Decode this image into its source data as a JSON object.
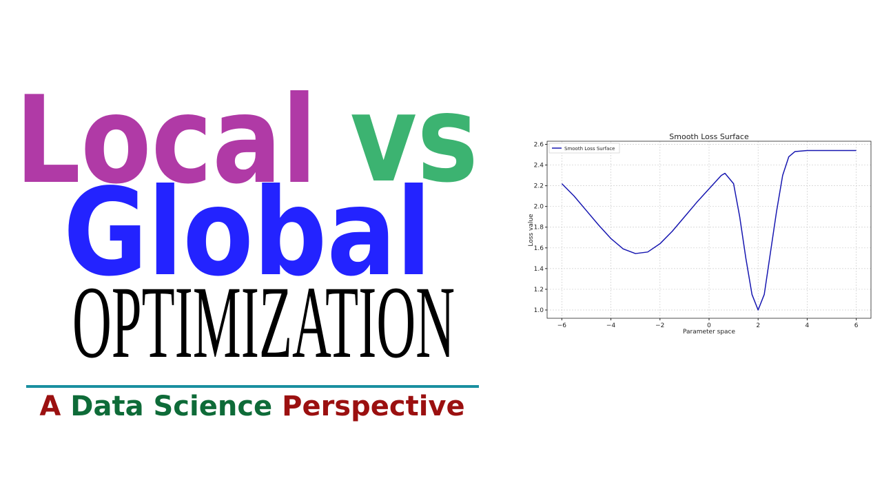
{
  "header": {
    "line1": {
      "word1": "Local",
      "word2": "vs"
    },
    "line2": "Global",
    "line3": "OPTIMIZATION",
    "subtitle": [
      "A",
      "Data Science",
      "Perspective"
    ]
  },
  "chart_data": {
    "type": "line",
    "title": "Smooth Loss Surface",
    "x_label": "Parameter space",
    "y_label": "Loss value",
    "x": [
      -6,
      -5.5,
      -5,
      -4.5,
      -4,
      -3.5,
      -3,
      -2.5,
      -2,
      -1.5,
      -1,
      -0.5,
      0,
      0.5,
      0.65,
      1.0,
      1.25,
      1.5,
      1.75,
      2.0,
      2.25,
      2.5,
      2.75,
      3.0,
      3.25,
      3.5,
      4,
      5,
      6
    ],
    "series": [
      {
        "name": "Smooth Loss Surface",
        "color": "#1515b0",
        "values": [
          2.22,
          2.1,
          1.96,
          1.82,
          1.69,
          1.59,
          1.545,
          1.56,
          1.64,
          1.76,
          1.9,
          2.04,
          2.17,
          2.3,
          2.32,
          2.22,
          1.9,
          1.5,
          1.15,
          1.0,
          1.15,
          1.55,
          1.95,
          2.3,
          2.48,
          2.53,
          2.54,
          2.54,
          2.54
        ]
      }
    ],
    "xlim": [
      -6.6,
      6.6
    ],
    "ylim": [
      0.92,
      2.63
    ],
    "xticks": [
      {
        "value": -6,
        "label": "−6"
      },
      {
        "value": -4,
        "label": "−4"
      },
      {
        "value": -2,
        "label": "−2"
      },
      0,
      2,
      4,
      6
    ],
    "yticks": [
      {
        "value": 1.0,
        "label": "1.0"
      },
      1.2,
      1.4,
      1.6,
      1.8,
      {
        "value": 2.0,
        "label": "2.0"
      },
      2.2,
      2.4,
      2.6
    ],
    "grid": true,
    "legend": "upper-left"
  }
}
